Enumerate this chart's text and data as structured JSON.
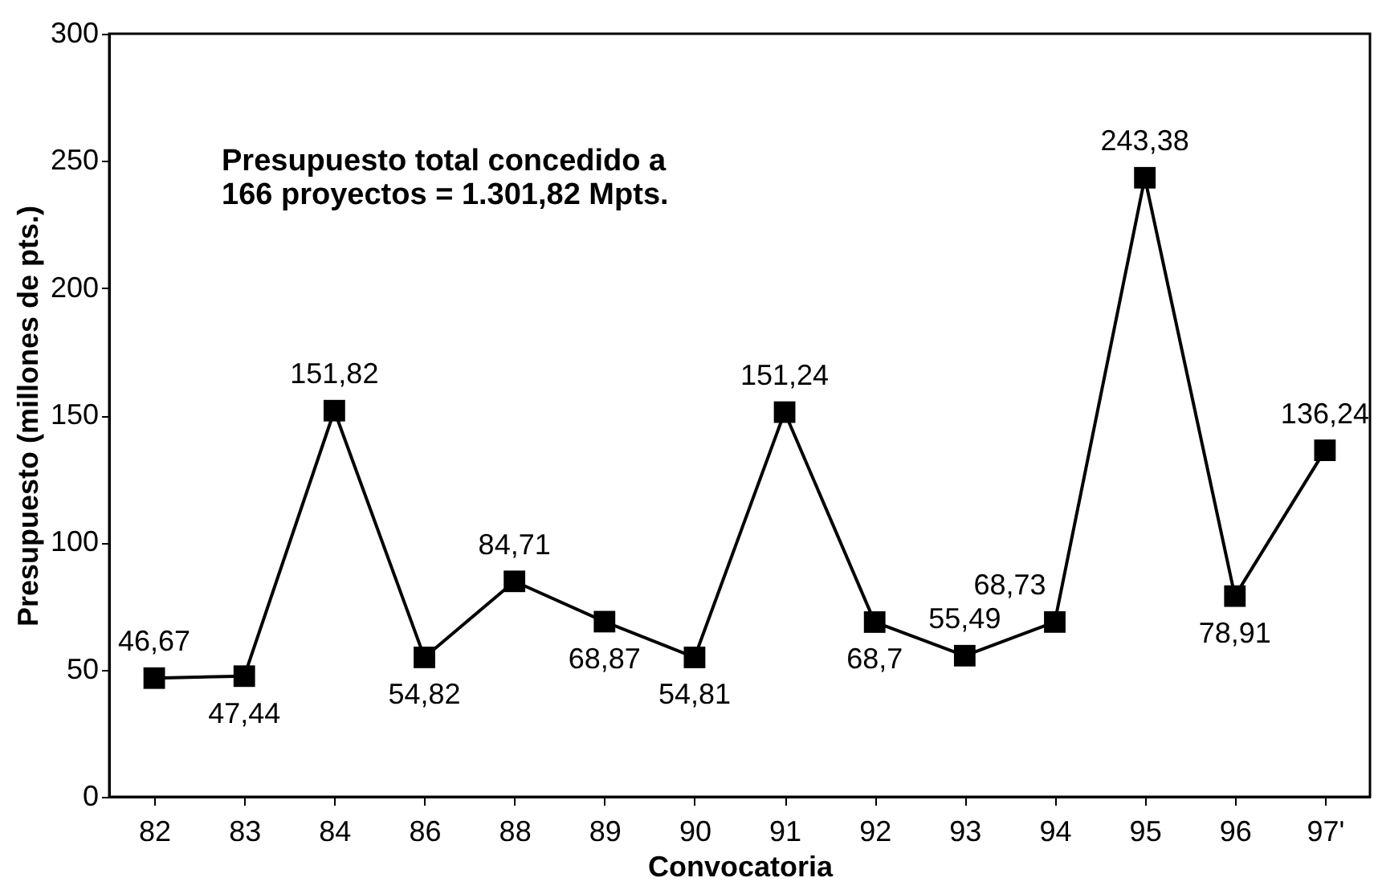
{
  "chart_data": {
    "type": "line",
    "xlabel": "Convocatoria",
    "ylabel": "Presupuesto (millones de pts.)",
    "categories": [
      "82",
      "83",
      "84",
      "86",
      "88",
      "89",
      "90",
      "91",
      "92",
      "93",
      "94",
      "95",
      "96",
      "97'"
    ],
    "series": [
      {
        "color": "#000000",
        "values": [
          46.67,
          47.44,
          151.82,
          54.82,
          84.71,
          68.87,
          54.81,
          151.24,
          68.7,
          55.49,
          68.73,
          243.38,
          78.91,
          136.24
        ],
        "value_labels": [
          "46,67",
          "47,44",
          "151,82",
          "54,82",
          "84,71",
          "68,87",
          "54,81",
          "151,24",
          "68,7",
          "55,49",
          "68,73",
          "243,38",
          "78,91",
          "136,24"
        ]
      }
    ],
    "ylim": [
      0,
      300
    ],
    "yticks": [
      0,
      50,
      100,
      150,
      200,
      250,
      300
    ],
    "grid": false,
    "legend": false,
    "marker": "square",
    "line_style": "solid",
    "annotations": [
      "Presupuesto total  concedido a\n166 proyectos = 1.301,82 Mpts."
    ]
  }
}
